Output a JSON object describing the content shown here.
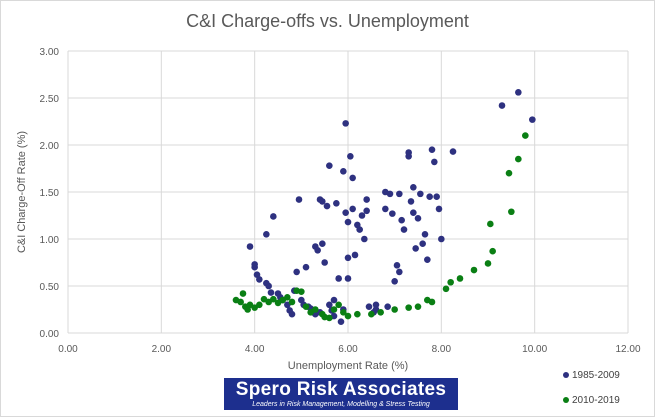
{
  "chart_data": {
    "type": "scatter",
    "title": "C&I Charge-offs vs. Unemployment",
    "xlabel": "Unemployment  Rate (%)",
    "ylabel": "C&I Charge-Off Rate (%)",
    "xlim": [
      0,
      12
    ],
    "ylim": [
      0,
      3
    ],
    "x_ticks": [
      "0.00",
      "2.00",
      "4.00",
      "6.00",
      "8.00",
      "10.00",
      "12.00"
    ],
    "y_ticks": [
      "0.00",
      "0.50",
      "1.00",
      "1.50",
      "2.00",
      "2.50",
      "3.00"
    ],
    "grid": true,
    "legend_position": "bottom-right",
    "series": [
      {
        "name": "1985-2009",
        "color": "#2e3180",
        "points": [
          [
            3.9,
            0.92
          ],
          [
            4.0,
            0.7
          ],
          [
            4.0,
            0.73
          ],
          [
            4.05,
            0.62
          ],
          [
            4.1,
            0.57
          ],
          [
            4.25,
            1.05
          ],
          [
            4.25,
            0.53
          ],
          [
            4.3,
            0.5
          ],
          [
            4.35,
            0.43
          ],
          [
            4.4,
            1.24
          ],
          [
            4.5,
            0.42
          ],
          [
            4.55,
            0.38
          ],
          [
            4.6,
            0.35
          ],
          [
            4.7,
            0.3
          ],
          [
            4.75,
            0.24
          ],
          [
            4.8,
            0.2
          ],
          [
            4.85,
            0.45
          ],
          [
            4.9,
            0.65
          ],
          [
            4.95,
            1.42
          ],
          [
            5.0,
            0.35
          ],
          [
            5.05,
            0.3
          ],
          [
            5.1,
            0.7
          ],
          [
            5.2,
            0.26
          ],
          [
            5.25,
            0.22
          ],
          [
            5.3,
            0.92
          ],
          [
            5.35,
            0.88
          ],
          [
            5.4,
            1.42
          ],
          [
            5.45,
            1.4
          ],
          [
            5.4,
            0.22
          ],
          [
            5.45,
            0.95
          ],
          [
            5.5,
            0.75
          ],
          [
            5.55,
            1.35
          ],
          [
            5.6,
            1.78
          ],
          [
            5.6,
            0.3
          ],
          [
            5.65,
            0.24
          ],
          [
            5.7,
            0.35
          ],
          [
            5.7,
            0.18
          ],
          [
            5.75,
            1.38
          ],
          [
            5.8,
            0.58
          ],
          [
            5.85,
            0.12
          ],
          [
            5.9,
            1.72
          ],
          [
            5.95,
            2.23
          ],
          [
            5.95,
            1.28
          ],
          [
            6.0,
            1.18
          ],
          [
            6.0,
            0.8
          ],
          [
            6.05,
            1.88
          ],
          [
            6.1,
            1.65
          ],
          [
            6.1,
            1.32
          ],
          [
            6.15,
            0.83
          ],
          [
            6.2,
            1.15
          ],
          [
            6.25,
            1.1
          ],
          [
            6.3,
            1.25
          ],
          [
            6.35,
            1.0
          ],
          [
            6.4,
            1.42
          ],
          [
            6.4,
            1.3
          ],
          [
            6.45,
            0.28
          ],
          [
            6.55,
            0.22
          ],
          [
            6.6,
            0.3
          ],
          [
            6.6,
            0.25
          ],
          [
            6.8,
            1.5
          ],
          [
            6.8,
            1.32
          ],
          [
            6.85,
            0.28
          ],
          [
            6.9,
            1.48
          ],
          [
            6.95,
            1.27
          ],
          [
            7.0,
            0.55
          ],
          [
            7.05,
            0.72
          ],
          [
            7.1,
            1.48
          ],
          [
            7.1,
            0.65
          ],
          [
            7.15,
            1.2
          ],
          [
            7.2,
            1.1
          ],
          [
            7.3,
            1.88
          ],
          [
            7.3,
            1.92
          ],
          [
            7.35,
            1.4
          ],
          [
            7.4,
            1.28
          ],
          [
            7.4,
            1.55
          ],
          [
            7.45,
            0.9
          ],
          [
            7.5,
            1.22
          ],
          [
            7.55,
            1.48
          ],
          [
            7.6,
            0.95
          ],
          [
            7.65,
            1.05
          ],
          [
            7.7,
            0.78
          ],
          [
            7.75,
            1.45
          ],
          [
            7.8,
            1.95
          ],
          [
            7.85,
            1.82
          ],
          [
            7.9,
            1.45
          ],
          [
            7.95,
            1.32
          ],
          [
            8.0,
            1.0
          ],
          [
            8.25,
            1.93
          ],
          [
            9.3,
            2.42
          ],
          [
            9.65,
            2.56
          ],
          [
            9.95,
            2.27
          ],
          [
            6.0,
            0.58
          ],
          [
            5.9,
            0.25
          ],
          [
            5.15,
            0.28
          ],
          [
            5.3,
            0.2
          ]
        ]
      },
      {
        "name": "2010-2019",
        "color": "#0a7f14",
        "points": [
          [
            3.6,
            0.35
          ],
          [
            3.7,
            0.33
          ],
          [
            3.75,
            0.42
          ],
          [
            3.8,
            0.28
          ],
          [
            3.85,
            0.25
          ],
          [
            3.9,
            0.3
          ],
          [
            4.0,
            0.27
          ],
          [
            4.1,
            0.3
          ],
          [
            4.2,
            0.36
          ],
          [
            4.3,
            0.33
          ],
          [
            4.4,
            0.36
          ],
          [
            4.5,
            0.32
          ],
          [
            4.6,
            0.35
          ],
          [
            4.7,
            0.38
          ],
          [
            4.8,
            0.33
          ],
          [
            4.9,
            0.45
          ],
          [
            5.0,
            0.44
          ],
          [
            5.1,
            0.28
          ],
          [
            5.2,
            0.22
          ],
          [
            5.3,
            0.25
          ],
          [
            5.45,
            0.2
          ],
          [
            5.5,
            0.17
          ],
          [
            5.6,
            0.16
          ],
          [
            5.7,
            0.25
          ],
          [
            5.8,
            0.3
          ],
          [
            5.9,
            0.22
          ],
          [
            6.0,
            0.18
          ],
          [
            6.2,
            0.2
          ],
          [
            6.5,
            0.2
          ],
          [
            6.7,
            0.22
          ],
          [
            7.0,
            0.25
          ],
          [
            7.3,
            0.27
          ],
          [
            7.5,
            0.28
          ],
          [
            7.7,
            0.35
          ],
          [
            7.8,
            0.33
          ],
          [
            8.1,
            0.47
          ],
          [
            8.2,
            0.54
          ],
          [
            8.4,
            0.58
          ],
          [
            8.7,
            0.67
          ],
          [
            9.0,
            0.74
          ],
          [
            9.1,
            0.87
          ],
          [
            9.05,
            1.16
          ],
          [
            9.5,
            1.29
          ],
          [
            9.45,
            1.7
          ],
          [
            9.65,
            1.85
          ],
          [
            9.8,
            2.1
          ]
        ]
      }
    ]
  }
}
